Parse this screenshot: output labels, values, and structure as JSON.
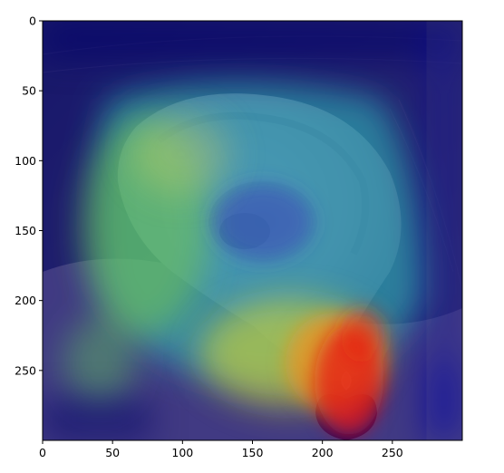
{
  "figure": {
    "x_ticks": [
      "0",
      "50",
      "100",
      "150",
      "200",
      "250"
    ],
    "y_ticks": [
      "0",
      "50",
      "100",
      "150",
      "200",
      "250"
    ],
    "x_range": [
      0,
      299
    ],
    "y_range": [
      0,
      299
    ]
  },
  "image": {
    "description_type": "grad-cam heatmap overlay on ear photograph",
    "colormap": "jet",
    "overlay_alpha": 0.45,
    "heat_points": [
      {
        "x": 215,
        "y": 270,
        "intensity": 1.0,
        "spread": 45
      },
      {
        "x": 225,
        "y": 230,
        "intensity": 0.85,
        "spread": 40
      },
      {
        "x": 160,
        "y": 250,
        "intensity": 0.55,
        "spread": 55
      },
      {
        "x": 110,
        "y": 180,
        "intensity": 0.45,
        "spread": 70
      },
      {
        "x": 160,
        "y": 120,
        "intensity": 0.38,
        "spread": 90
      },
      {
        "x": 60,
        "y": 260,
        "intensity": 0.35,
        "spread": 45
      }
    ]
  },
  "colors": {
    "deep_blue": "#0a0a8a",
    "ear_tone": "#c8b8a0",
    "hair_tone": "#4a4440",
    "earring_tone": "#8a2020"
  }
}
